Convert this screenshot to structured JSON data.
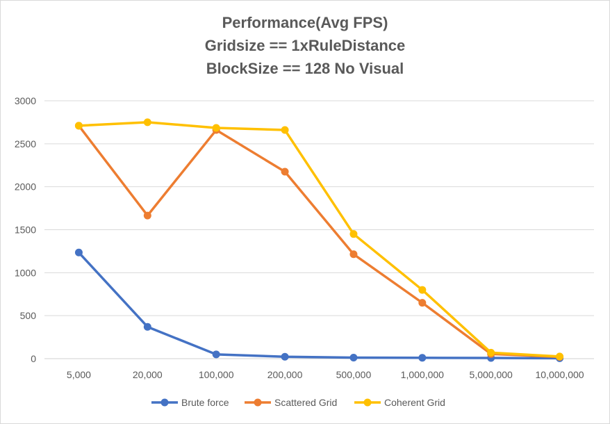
{
  "chart_data": {
    "type": "line",
    "title_lines": [
      "Performance(Avg FPS)",
      "Gridsize == 1xRuleDistance",
      "BlockSize == 128  No Visual"
    ],
    "categories": [
      "5,000",
      "20,000",
      "100,000",
      "200,000",
      "500,000",
      "1,000,000",
      "5,000,000",
      "10,000,000"
    ],
    "ylim": [
      0,
      3000
    ],
    "yticks": [
      "0",
      "500",
      "1000",
      "1500",
      "2000",
      "2500",
      "3000"
    ],
    "grid": true,
    "legend_position": "bottom",
    "series": [
      {
        "name": "Brute force",
        "color": "#4472c4",
        "values": [
          1235,
          370,
          50,
          22,
          12,
          10,
          8,
          5
        ]
      },
      {
        "name": "Scattered Grid",
        "color": "#ed7d31",
        "values": [
          2710,
          1665,
          2660,
          2175,
          1215,
          650,
          55,
          20
        ]
      },
      {
        "name": "Coherent Grid",
        "color": "#ffc000",
        "values": [
          2710,
          2750,
          2685,
          2660,
          1450,
          800,
          70,
          25
        ]
      }
    ]
  }
}
